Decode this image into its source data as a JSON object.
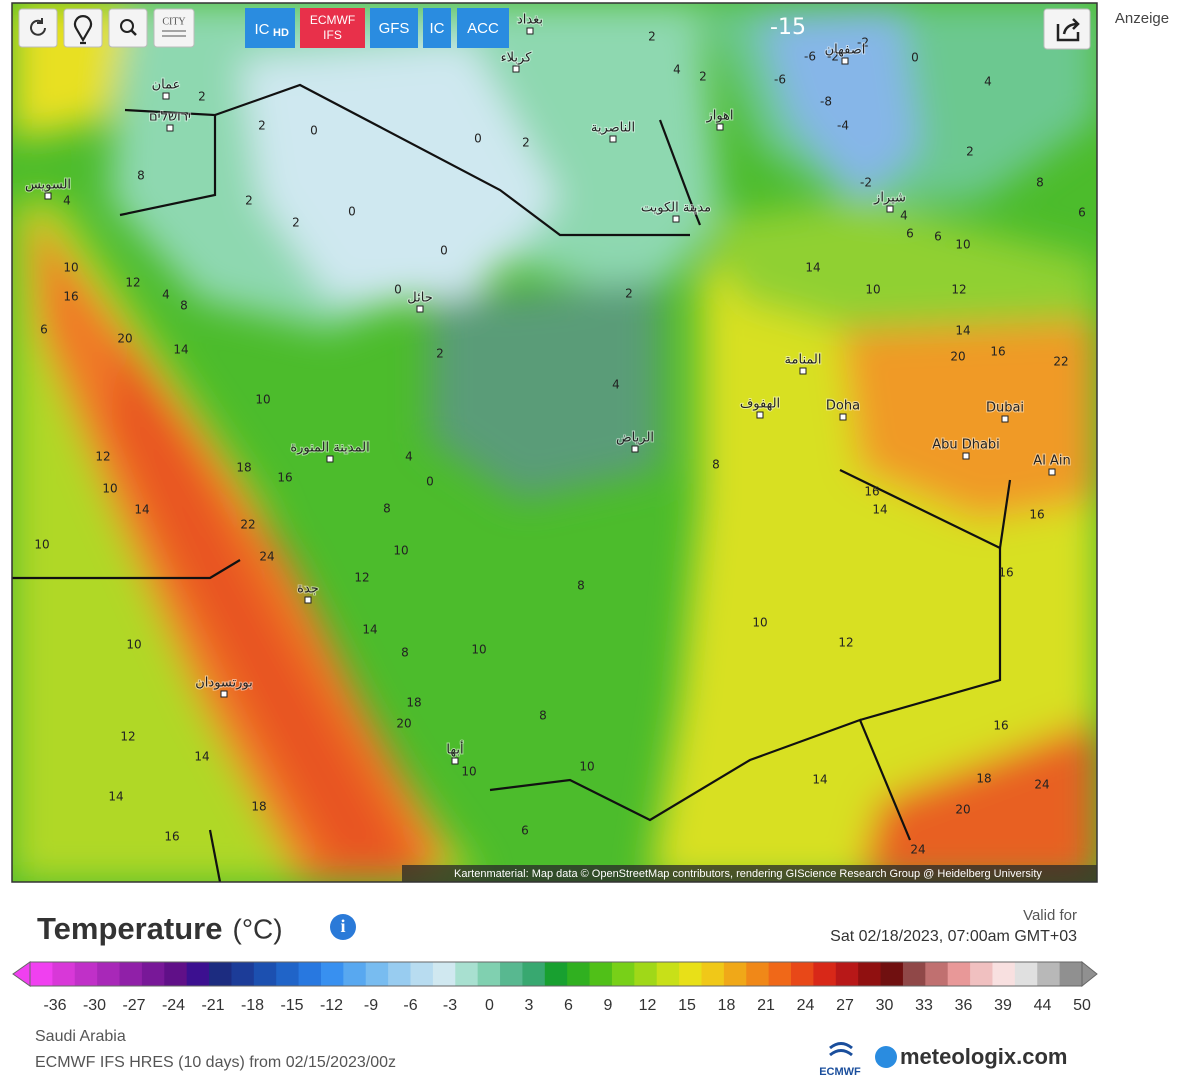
{
  "toolbar": {
    "city_icon": "CITY",
    "models": [
      {
        "label": "IC",
        "sub": "HD"
      },
      {
        "label": "ECMWF",
        "sub": "IFS"
      },
      {
        "label": "GFS"
      },
      {
        "label": "IC"
      },
      {
        "label": "ACC"
      }
    ]
  },
  "ad_label": "Anzeige",
  "map": {
    "cities": [
      "عمان",
      "ירושלים",
      "السويس",
      "كربلاء",
      "بغداد",
      "الناصرية",
      "اهواز",
      "اصفهان",
      "شیراز",
      "مدينة الكويت",
      "حائل",
      "المنامة",
      "الهفوف",
      "Doha",
      "الرياض",
      "المدينة المنورة",
      "Dubai",
      "Abu Dhabi",
      "Al Ain",
      "جدة",
      "بورتسودان",
      "أبها"
    ],
    "contour_labels": [
      2,
      4,
      2,
      2,
      2,
      0,
      0,
      2,
      8,
      4,
      2,
      2,
      0,
      0,
      0,
      2,
      2,
      4,
      4,
      8,
      0,
      8,
      10,
      12,
      8,
      10,
      12,
      10,
      12,
      14,
      16,
      14,
      18,
      14,
      8,
      10,
      18,
      20,
      8,
      10,
      10,
      6,
      20,
      14,
      10,
      12,
      10,
      14,
      10,
      22,
      24,
      18,
      16,
      12,
      10,
      16,
      6,
      4,
      8,
      14,
      10,
      12,
      14,
      20,
      16,
      22,
      16,
      14,
      16,
      16,
      16,
      18,
      14,
      24,
      20,
      24,
      4,
      6,
      6,
      10,
      6,
      8,
      -2,
      -4,
      -8,
      -6,
      -6,
      -2,
      -2,
      0,
      4,
      2,
      -15
    ],
    "attribution": "Kartenmaterial: Map data © OpenStreetMap contributors, rendering GIScience Research Group @ Heidelberg University"
  },
  "legend": {
    "title": "Temperature",
    "unit": "(°C)",
    "valid_label": "Valid for",
    "valid_time": "Sat 02/18/2023, 07:00am GMT+03",
    "colors": [
      "#f040f0",
      "#d838d8",
      "#c030c8",
      "#a828b8",
      "#9020a8",
      "#781898",
      "#601088",
      "#3c1090",
      "#1c2c80",
      "#1c3c98",
      "#1c50b0",
      "#2064c8",
      "#2878e0",
      "#3890f0",
      "#58a8f0",
      "#78bcf0",
      "#98ccf0",
      "#b8dcf0",
      "#d0e8f0",
      "#a8e0d0",
      "#80d0b0",
      "#58b890",
      "#38a870",
      "#18a030",
      "#30b020",
      "#50c018",
      "#78d018",
      "#a0d818",
      "#c8e018",
      "#e8e018",
      "#f0c818",
      "#f0a818",
      "#f08818",
      "#f06818",
      "#e84818",
      "#d82818",
      "#b81818",
      "#901010",
      "#701010",
      "#904848",
      "#c07070",
      "#e89898",
      "#f0c0c0",
      "#f8e0e0",
      "#e0e0e0",
      "#b8b8b8",
      "#909090"
    ],
    "ticks": [
      -36,
      -30,
      -27,
      -24,
      -21,
      -18,
      -15,
      -12,
      -9,
      -6,
      -3,
      0,
      3,
      6,
      9,
      12,
      15,
      18,
      21,
      24,
      27,
      30,
      33,
      36,
      39,
      44,
      50
    ]
  },
  "footer": {
    "region": "Saudi Arabia",
    "model_run": "ECMWF IFS HRES (10 days) from 02/15/2023/00z",
    "ecmwf_logo": "ECMWF",
    "brand": "meteologix.com"
  }
}
